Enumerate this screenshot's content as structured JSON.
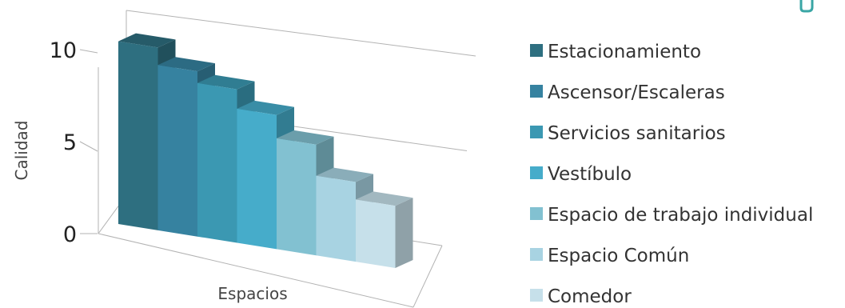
{
  "chart_data": {
    "type": "bar",
    "title": "",
    "xlabel": "Espacios",
    "ylabel": "Calidad",
    "ylim": [
      0,
      10
    ],
    "yticks": [
      {
        "value": 0,
        "label": "0"
      },
      {
        "value": 5,
        "label": "5"
      },
      {
        "value": 10,
        "label": "10"
      }
    ],
    "grid": true,
    "legend_position": "right",
    "series": [
      {
        "name": "Estacionamiento",
        "value": 9.4,
        "color": "#2E6F80"
      },
      {
        "name": "Ascensor/Escaleras",
        "value": 8.5,
        "color": "#3682A0"
      },
      {
        "name": "Servicios sanitarios",
        "value": 7.9,
        "color": "#3B98B2"
      },
      {
        "name": "Vestíbulo",
        "value": 6.9,
        "color": "#46ACCA"
      },
      {
        "name": "Espacio de trabajo individual",
        "value": 5.7,
        "color": "#82C1D1"
      },
      {
        "name": "Espacio Común",
        "value": 4.1,
        "color": "#A8D3E2"
      },
      {
        "name": "Comedor",
        "value": 3.2,
        "color": "#C6E0EA"
      }
    ]
  }
}
